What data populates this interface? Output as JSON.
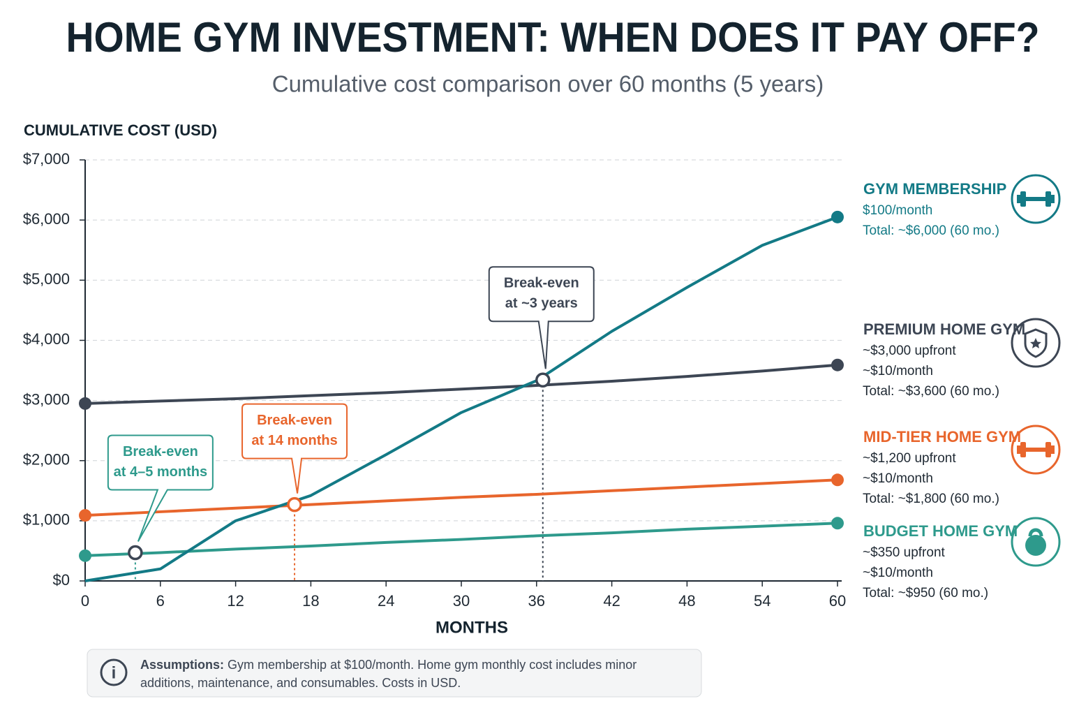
{
  "chart_data": {
    "type": "line",
    "title": "HOME GYM INVESTMENT: WHEN DOES IT PAY OFF?",
    "subtitle": "Cumulative cost comparison over 60 months (5 years)",
    "y_label": "CUMULATIVE COST (USD)",
    "x_label": "MONTHS",
    "x": [
      0,
      6,
      12,
      18,
      24,
      30,
      36,
      42,
      48,
      54,
      60
    ],
    "xlim": [
      0,
      60
    ],
    "xticks": [
      0,
      6,
      12,
      18,
      24,
      30,
      36,
      42,
      48,
      54,
      60
    ],
    "ylim": [
      0,
      7000
    ],
    "yticks": [
      {
        "value": 0,
        "label": "$0"
      },
      {
        "value": 1000,
        "label": "$1,000"
      },
      {
        "value": 2000,
        "label": "$2,000"
      },
      {
        "value": 3000,
        "label": "$3,000"
      },
      {
        "value": 4000,
        "label": "$4,000"
      },
      {
        "value": 5000,
        "label": "$5,000"
      },
      {
        "value": 6000,
        "label": "$6,000"
      },
      {
        "value": 7000,
        "label": "$7,000"
      }
    ],
    "grid": true,
    "series": [
      {
        "name": "GYM MEMBERSHIP",
        "color": "#137a86",
        "markers": [
          "end"
        ],
        "details": [
          "$100/month",
          "Total: ~$6,000 (60 mo.)"
        ],
        "values": [
          0,
          200,
          1000,
          1420,
          2100,
          2800,
          3330,
          4150,
          4880,
          5580,
          6050
        ]
      },
      {
        "name": "PREMIUM HOME GYM",
        "color": "#3d4654",
        "markers": [
          "start",
          "end"
        ],
        "details": [
          "~$3,000 upfront",
          "~$10/month",
          "Total: ~$3,600 (60 mo.)"
        ],
        "values": [
          2950,
          2990,
          3030,
          3080,
          3130,
          3190,
          3250,
          3320,
          3400,
          3490,
          3590
        ]
      },
      {
        "name": "MID-TIER HOME GYM",
        "color": "#e8652c",
        "markers": [
          "start",
          "end"
        ],
        "details": [
          "~$1,200 upfront",
          "~$10/month",
          "Total: ~$1,800 (60 mo.)"
        ],
        "values": [
          1090,
          1150,
          1210,
          1270,
          1330,
          1390,
          1440,
          1500,
          1560,
          1620,
          1680
        ]
      },
      {
        "name": "BUDGET HOME GYM",
        "color": "#2e9a8c",
        "markers": [
          "start",
          "end"
        ],
        "details": [
          "~$350 upfront",
          "~$10/month",
          "Total: ~$950 (60 mo.)"
        ],
        "values": [
          420,
          470,
          530,
          580,
          640,
          690,
          750,
          800,
          860,
          910,
          960
        ]
      }
    ],
    "annotations": [
      {
        "x": 4,
        "y": 470,
        "color": "#2e9a8c",
        "text": [
          "Break-even",
          "at 4–5 months"
        ]
      },
      {
        "x": 16.7,
        "y": 1270,
        "color": "#e8652c",
        "text": [
          "Break-even",
          "at 14 months"
        ]
      },
      {
        "x": 36.5,
        "y": 3340,
        "color": "#3d4654",
        "text": [
          "Break-even",
          "at ~3 years"
        ]
      }
    ],
    "footnote": {
      "label": "Assumptions:",
      "lines": [
        "Gym membership at $100/month. Home gym monthly cost includes minor",
        "additions, maintenance, and consumables. Costs in USD."
      ]
    }
  }
}
